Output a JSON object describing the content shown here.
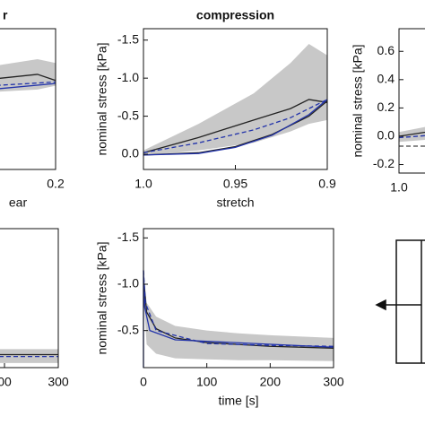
{
  "chart_data": [
    {
      "type": "line",
      "title": "r",
      "xlabel": "ear",
      "xlim": [
        0,
        0.2
      ],
      "ylim": [
        0.2,
        -1.65
      ],
      "xticks": [
        0.2
      ],
      "yticks": [],
      "series": [
        {
          "color": "#c8c8c8",
          "x": [
            0,
            0.1,
            0.18,
            0.2
          ],
          "values": [
            -0.95,
            -1.1,
            -1.25,
            -1.2
          ],
          "lower": [
            -0.8,
            -0.8,
            -0.85,
            -0.9
          ]
        },
        {
          "color": "#222222",
          "x": [
            0,
            0.1,
            0.18,
            0.2
          ],
          "values": [
            -0.85,
            -0.95,
            -1.05,
            -0.97
          ]
        },
        {
          "color": "#2233aa",
          "dash": true,
          "x": [
            0,
            0.1,
            0.2
          ],
          "values": [
            -0.82,
            -0.88,
            -0.95
          ]
        },
        {
          "color": "#2233aa",
          "x": [
            0,
            0.1,
            0.2
          ],
          "values": [
            -0.78,
            -0.82,
            -0.93
          ]
        }
      ]
    },
    {
      "type": "line",
      "title": "compression",
      "ylabel": "nominal stress [kPa]",
      "xlabel": "stretch",
      "xlim": [
        1,
        0.9
      ],
      "ylim": [
        0.2,
        -1.65
      ],
      "xticks": [
        {
          "value": 1,
          "label": "1.0"
        },
        0.95,
        0.9
      ],
      "yticks": [
        -1.5,
        {
          "value": -1,
          "label": "-1.0"
        },
        -0.5,
        {
          "value": 0,
          "label": "0.0"
        }
      ],
      "series": [
        {
          "color": "#c8c8c8",
          "x": [
            1,
            0.97,
            0.94,
            0.92,
            0.91,
            0.9
          ],
          "values": [
            -0.05,
            -0.4,
            -0.8,
            -1.2,
            -1.45,
            -1.3
          ],
          "lower": [
            0.02,
            -0.05,
            -0.15,
            -0.3,
            -0.4,
            -0.45
          ]
        },
        {
          "color": "#222222",
          "x": [
            1,
            0.97,
            0.94,
            0.92,
            0.91,
            0.9
          ],
          "values": [
            -0.02,
            -0.22,
            -0.45,
            -0.6,
            -0.72,
            -0.68
          ]
        },
        {
          "color": "#2233aa",
          "dash": true,
          "x": [
            1,
            0.97,
            0.94,
            0.92,
            0.9
          ],
          "values": [
            -0.02,
            -0.15,
            -0.32,
            -0.48,
            -0.72
          ]
        },
        {
          "color": "#222222",
          "x": [
            0.9,
            0.91,
            0.93,
            0.95,
            0.97,
            1
          ],
          "values": [
            -0.7,
            -0.5,
            -0.26,
            -0.1,
            -0.02,
            0.01
          ]
        },
        {
          "color": "#2233aa",
          "x": [
            0.9,
            0.91,
            0.93,
            0.95,
            0.97,
            1
          ],
          "values": [
            -0.72,
            -0.52,
            -0.25,
            -0.09,
            -0.01,
            0.01
          ]
        }
      ]
    },
    {
      "type": "line",
      "ylabel": "nominal stress [kPa]",
      "xlim": [
        1,
        0.9
      ],
      "ylim": [
        -0.26,
        0.76
      ],
      "xticks": [
        {
          "value": 1,
          "label": "1.0"
        }
      ],
      "yticks": [
        0.6,
        0.4,
        0.2,
        {
          "value": 0,
          "label": "0.0"
        },
        -0.2
      ],
      "series": [
        {
          "color": "#c8c8c8",
          "x": [
            1,
            0.98,
            0.96
          ],
          "values": [
            0.03,
            0.08,
            0.12
          ],
          "lower": [
            -0.04,
            -0.02,
            0
          ]
        },
        {
          "color": "#222222",
          "x": [
            1,
            0.98,
            0.96
          ],
          "values": [
            0,
            0.04,
            0.07
          ]
        },
        {
          "color": "#2233aa",
          "dash": true,
          "x": [
            1,
            0.98,
            0.96
          ],
          "values": [
            -0.01,
            0.01,
            0.03
          ]
        },
        {
          "color": "#444444",
          "dash": true,
          "x": [
            1,
            0.96
          ],
          "values": [
            -0.07,
            -0.07
          ]
        }
      ]
    },
    {
      "type": "line",
      "xlim": [
        0,
        300
      ],
      "ylim": [
        -0.1,
        -1.6
      ],
      "xticks": [
        {
          "value": 100,
          "label": "00"
        },
        300
      ],
      "yticks": [],
      "series": [
        {
          "color": "#c8c8c8",
          "x": [
            0,
            300
          ],
          "values": [
            -0.3,
            -0.3
          ],
          "lower": [
            -0.15,
            -0.15
          ]
        },
        {
          "color": "#222222",
          "x": [
            0,
            300
          ],
          "values": [
            -0.24,
            -0.24
          ]
        },
        {
          "color": "#2233aa",
          "dash": true,
          "x": [
            0,
            300
          ],
          "values": [
            -0.22,
            -0.22
          ]
        }
      ]
    },
    {
      "type": "line",
      "ylabel": "nominal stress [kPa]",
      "xlabel": "time [s]",
      "xlim": [
        0,
        300
      ],
      "ylim": [
        -0.1,
        -1.6
      ],
      "xticks": [
        0,
        100,
        200,
        300
      ],
      "yticks": [
        -1.5,
        {
          "value": -1,
          "label": "-1.0"
        },
        -0.5
      ],
      "series": [
        {
          "color": "#c8c8c8",
          "x": [
            0,
            5,
            20,
            50,
            100,
            150,
            200,
            300
          ],
          "values": [
            -1.15,
            -0.8,
            -0.65,
            -0.55,
            -0.5,
            -0.47,
            -0.45,
            -0.42
          ],
          "lower": [
            -0.9,
            -0.35,
            -0.25,
            -0.2,
            -0.19,
            -0.18,
            -0.18,
            -0.17
          ]
        },
        {
          "color": "#222222",
          "x": [
            1,
            5,
            20,
            50,
            100,
            200,
            300
          ],
          "values": [
            -1,
            -0.7,
            -0.52,
            -0.42,
            -0.37,
            -0.33,
            -0.31
          ]
        },
        {
          "color": "#2233aa",
          "dash": true,
          "x": [
            0,
            3,
            20,
            100,
            200,
            300
          ],
          "values": [
            -1.15,
            -0.8,
            -0.5,
            -0.36,
            -0.34,
            -0.33
          ]
        },
        {
          "color": "#2233aa",
          "x": [
            0,
            0,
            2,
            10,
            50,
            300
          ],
          "values": [
            -0.1,
            -1.15,
            -0.75,
            -0.5,
            -0.4,
            -0.32
          ]
        }
      ]
    }
  ]
}
